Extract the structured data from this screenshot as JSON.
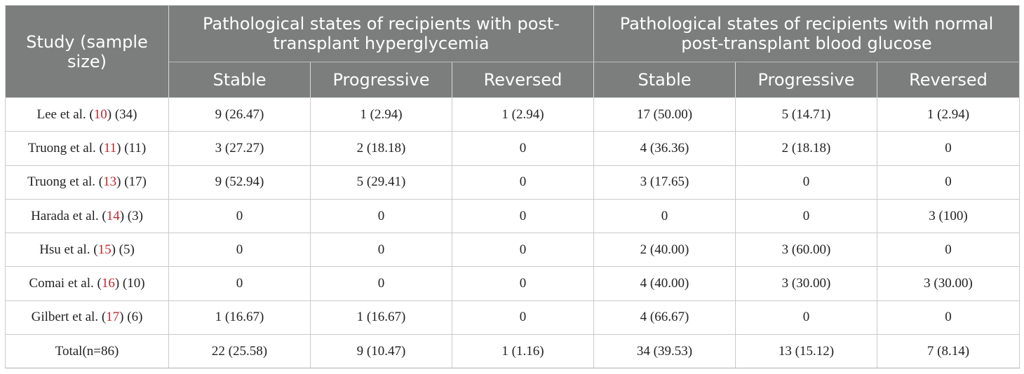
{
  "header": {
    "study_label": "Study (sample size)",
    "group1": "Pathological states of recipients with post-transplant hyperglycemia",
    "group2": "Pathological states of recipients with normal post-transplant blood glucose",
    "subcols": [
      "Stable",
      "Progressive",
      "Reversed",
      "Stable",
      "Progressive",
      "Reversed"
    ]
  },
  "rows": [
    {
      "author": "Lee et al. (",
      "ref": "10",
      "size": ") (34)",
      "cells": [
        "9 (26.47)",
        "1 (2.94)",
        "1 (2.94)",
        "17 (50.00)",
        "5 (14.71)",
        "1 (2.94)"
      ]
    },
    {
      "author": "Truong et al. (",
      "ref": "11",
      "size": ") (11)",
      "cells": [
        "3 (27.27)",
        "2 (18.18)",
        "0",
        "4 (36.36)",
        "2 (18.18)",
        "0"
      ]
    },
    {
      "author": "Truong et al. (",
      "ref": "13",
      "size": ") (17)",
      "cells": [
        "9 (52.94)",
        "5 (29.41)",
        "0",
        "3 (17.65)",
        "0",
        "0"
      ]
    },
    {
      "author": "Harada et al. (",
      "ref": "14",
      "size": ") (3)",
      "cells": [
        "0",
        "0",
        "0",
        "0",
        "0",
        "3 (100)"
      ]
    },
    {
      "author": "Hsu et al. (",
      "ref": "15",
      "size": ") (5)",
      "cells": [
        "0",
        "0",
        "0",
        "2 (40.00)",
        "3 (60.00)",
        "0"
      ]
    },
    {
      "author": "Comai et al. (",
      "ref": "16",
      "size": ") (10)",
      "cells": [
        "0",
        "0",
        "0",
        "4 (40.00)",
        "3 (30.00)",
        "3 (30.00)"
      ]
    },
    {
      "author": "Gilbert et al. (",
      "ref": "17",
      "size": ") (6)",
      "cells": [
        "1 (16.67)",
        "1 (16.67)",
        "0",
        "4 (66.67)",
        "0",
        "0"
      ]
    }
  ],
  "total": {
    "label": "Total(n=86)",
    "cells": [
      "22 (25.58)",
      "9 (10.47)",
      "1 (1.16)",
      "34 (39.53)",
      "13 (15.12)",
      "7 (8.14)"
    ]
  },
  "colors": {
    "header_bg": "#7b7e7c",
    "header_text": "#ffffff",
    "ref_link": "#c1272d"
  }
}
